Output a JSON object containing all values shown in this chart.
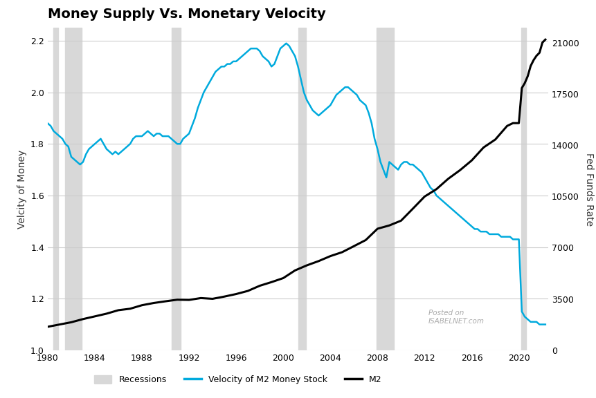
{
  "title": "Money Supply Vs. Monetary Velocity",
  "ylabel_left": "Velcity of Money",
  "ylabel_right": "Fed Funds Rate",
  "xlabel": "",
  "background_color": "#ffffff",
  "plot_bg_color": "#ffffff",
  "grid_color": "#cccccc",
  "recession_color": "#d8d8d8",
  "recessions": [
    [
      1980.5,
      1980.9
    ],
    [
      1981.5,
      1982.9
    ],
    [
      1990.5,
      1991.3
    ],
    [
      2001.3,
      2001.9
    ],
    [
      2007.9,
      2009.4
    ],
    [
      2020.2,
      2020.6
    ]
  ],
  "velocity_color": "#00aadd",
  "m2_color": "#000000",
  "velocity_linewidth": 1.8,
  "m2_linewidth": 2.2,
  "xlim": [
    1980,
    2022.5
  ],
  "ylim_left": [
    1.0,
    2.25
  ],
  "ylim_right": [
    0,
    22000
  ],
  "xticks": [
    1980,
    1984,
    1988,
    1992,
    1996,
    2000,
    2004,
    2008,
    2012,
    2016,
    2020
  ],
  "yticks_left": [
    1.0,
    1.2,
    1.4,
    1.6,
    1.8,
    2.0,
    2.2
  ],
  "yticks_right": [
    0,
    3500,
    7000,
    10500,
    14000,
    17500,
    21000
  ],
  "legend_labels": [
    "Recessions",
    "Velocity of M2 Money Stock",
    "M2"
  ],
  "watermark": "Posted on\nISABELNET.com",
  "velocity_data": {
    "years": [
      1980.0,
      1980.25,
      1980.5,
      1980.75,
      1981.0,
      1981.25,
      1981.5,
      1981.75,
      1982.0,
      1982.25,
      1982.5,
      1982.75,
      1983.0,
      1983.25,
      1983.5,
      1983.75,
      1984.0,
      1984.25,
      1984.5,
      1984.75,
      1985.0,
      1985.25,
      1985.5,
      1985.75,
      1986.0,
      1986.25,
      1986.5,
      1986.75,
      1987.0,
      1987.25,
      1987.5,
      1987.75,
      1988.0,
      1988.25,
      1988.5,
      1988.75,
      1989.0,
      1989.25,
      1989.5,
      1989.75,
      1990.0,
      1990.25,
      1990.5,
      1990.75,
      1991.0,
      1991.25,
      1991.5,
      1991.75,
      1992.0,
      1992.25,
      1992.5,
      1992.75,
      1993.0,
      1993.25,
      1993.5,
      1993.75,
      1994.0,
      1994.25,
      1994.5,
      1994.75,
      1995.0,
      1995.25,
      1995.5,
      1995.75,
      1996.0,
      1996.25,
      1996.5,
      1996.75,
      1997.0,
      1997.25,
      1997.5,
      1997.75,
      1998.0,
      1998.25,
      1998.5,
      1998.75,
      1999.0,
      1999.25,
      1999.5,
      1999.75,
      2000.0,
      2000.25,
      2000.5,
      2000.75,
      2001.0,
      2001.25,
      2001.5,
      2001.75,
      2002.0,
      2002.25,
      2002.5,
      2002.75,
      2003.0,
      2003.25,
      2003.5,
      2003.75,
      2004.0,
      2004.25,
      2004.5,
      2004.75,
      2005.0,
      2005.25,
      2005.5,
      2005.75,
      2006.0,
      2006.25,
      2006.5,
      2006.75,
      2007.0,
      2007.25,
      2007.5,
      2007.75,
      2008.0,
      2008.25,
      2008.5,
      2008.75,
      2009.0,
      2009.25,
      2009.5,
      2009.75,
      2010.0,
      2010.25,
      2010.5,
      2010.75,
      2011.0,
      2011.25,
      2011.5,
      2011.75,
      2012.0,
      2012.25,
      2012.5,
      2012.75,
      2013.0,
      2013.25,
      2013.5,
      2013.75,
      2014.0,
      2014.25,
      2014.5,
      2014.75,
      2015.0,
      2015.25,
      2015.5,
      2015.75,
      2016.0,
      2016.25,
      2016.5,
      2016.75,
      2017.0,
      2017.25,
      2017.5,
      2017.75,
      2018.0,
      2018.25,
      2018.5,
      2018.75,
      2019.0,
      2019.25,
      2019.5,
      2019.75,
      2020.0,
      2020.25,
      2020.5,
      2020.75,
      2021.0,
      2021.25,
      2021.5,
      2021.75,
      2022.0,
      2022.25
    ],
    "values": [
      1.88,
      1.87,
      1.85,
      1.84,
      1.83,
      1.82,
      1.8,
      1.79,
      1.75,
      1.74,
      1.73,
      1.72,
      1.73,
      1.76,
      1.78,
      1.79,
      1.8,
      1.81,
      1.82,
      1.8,
      1.78,
      1.77,
      1.76,
      1.77,
      1.76,
      1.77,
      1.78,
      1.79,
      1.8,
      1.82,
      1.83,
      1.83,
      1.83,
      1.84,
      1.85,
      1.84,
      1.83,
      1.84,
      1.84,
      1.83,
      1.83,
      1.83,
      1.82,
      1.81,
      1.8,
      1.8,
      1.82,
      1.83,
      1.84,
      1.87,
      1.9,
      1.94,
      1.97,
      2.0,
      2.02,
      2.04,
      2.06,
      2.08,
      2.09,
      2.1,
      2.1,
      2.11,
      2.11,
      2.12,
      2.12,
      2.13,
      2.14,
      2.15,
      2.16,
      2.17,
      2.17,
      2.17,
      2.16,
      2.14,
      2.13,
      2.12,
      2.1,
      2.11,
      2.14,
      2.17,
      2.18,
      2.19,
      2.18,
      2.16,
      2.14,
      2.1,
      2.05,
      2.0,
      1.97,
      1.95,
      1.93,
      1.92,
      1.91,
      1.92,
      1.93,
      1.94,
      1.95,
      1.97,
      1.99,
      2.0,
      2.01,
      2.02,
      2.02,
      2.01,
      2.0,
      1.99,
      1.97,
      1.96,
      1.95,
      1.92,
      1.88,
      1.82,
      1.78,
      1.73,
      1.7,
      1.67,
      1.73,
      1.72,
      1.71,
      1.7,
      1.72,
      1.73,
      1.73,
      1.72,
      1.72,
      1.71,
      1.7,
      1.69,
      1.67,
      1.65,
      1.63,
      1.62,
      1.6,
      1.59,
      1.58,
      1.57,
      1.56,
      1.55,
      1.54,
      1.53,
      1.52,
      1.51,
      1.5,
      1.49,
      1.48,
      1.47,
      1.47,
      1.46,
      1.46,
      1.46,
      1.45,
      1.45,
      1.45,
      1.45,
      1.44,
      1.44,
      1.44,
      1.44,
      1.43,
      1.43,
      1.43,
      1.15,
      1.13,
      1.12,
      1.11,
      1.11,
      1.11,
      1.1,
      1.1,
      1.1
    ]
  },
  "m2_data": {
    "years": [
      1980.0,
      1981.0,
      1982.0,
      1983.0,
      1984.0,
      1985.0,
      1986.0,
      1987.0,
      1988.0,
      1989.0,
      1990.0,
      1991.0,
      1992.0,
      1993.0,
      1994.0,
      1995.0,
      1996.0,
      1997.0,
      1998.0,
      1999.0,
      2000.0,
      2001.0,
      2002.0,
      2003.0,
      2004.0,
      2005.0,
      2006.0,
      2007.0,
      2008.0,
      2009.0,
      2010.0,
      2011.0,
      2012.0,
      2013.0,
      2014.0,
      2015.0,
      2016.0,
      2017.0,
      2018.0,
      2019.0,
      2019.5,
      2020.0,
      2020.25,
      2020.5,
      2020.75,
      2021.0,
      2021.25,
      2021.5,
      2021.75,
      2022.0,
      2022.25
    ],
    "values": [
      1600,
      1756,
      1910,
      2127,
      2311,
      2497,
      2733,
      2833,
      3072,
      3224,
      3340,
      3449,
      3434,
      3560,
      3510,
      3663,
      3836,
      4050,
      4400,
      4650,
      4924,
      5448,
      5793,
      6084,
      6425,
      6693,
      7105,
      7519,
      8292,
      8516,
      8843,
      9661,
      10490,
      10992,
      11700,
      12286,
      12955,
      13836,
      14380,
      15306,
      15500,
      15500,
      17890,
      18230,
      18700,
      19400,
      19800,
      20100,
      20300,
      21000,
      21200
    ]
  }
}
